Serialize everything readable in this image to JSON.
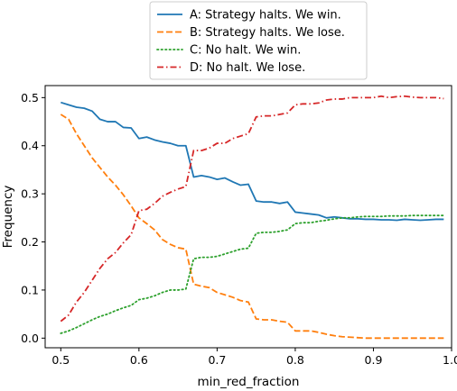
{
  "chart_data": {
    "type": "line",
    "xlabel": "min_red_fraction",
    "ylabel": "Frequency",
    "xlim": [
      0.48,
      1.0
    ],
    "ylim": [
      -0.02,
      0.525
    ],
    "xticks": [
      0.5,
      0.6,
      0.7,
      0.8,
      0.9,
      1.0
    ],
    "xtick_labels": [
      "0.5",
      "0.6",
      "0.7",
      "0.8",
      "0.9",
      "1.0"
    ],
    "yticks": [
      0.0,
      0.1,
      0.2,
      0.3,
      0.4,
      0.5
    ],
    "ytick_labels": [
      "0.0",
      "0.1",
      "0.2",
      "0.3",
      "0.4",
      "0.5"
    ],
    "grid": false,
    "legend_position": "top-center, outside plot",
    "x": [
      0.5,
      0.51,
      0.52,
      0.53,
      0.54,
      0.55,
      0.56,
      0.57,
      0.58,
      0.59,
      0.6,
      0.61,
      0.62,
      0.63,
      0.64,
      0.65,
      0.66,
      0.67,
      0.68,
      0.69,
      0.7,
      0.71,
      0.72,
      0.73,
      0.74,
      0.75,
      0.76,
      0.77,
      0.78,
      0.79,
      0.8,
      0.81,
      0.82,
      0.83,
      0.84,
      0.85,
      0.86,
      0.87,
      0.88,
      0.89,
      0.9,
      0.91,
      0.92,
      0.93,
      0.94,
      0.95,
      0.96,
      0.97,
      0.98,
      0.99
    ],
    "series": [
      {
        "name": "A: Strategy halts. We win.",
        "color": "#1f77b4",
        "dash": "solid",
        "values": [
          0.49,
          0.485,
          0.48,
          0.478,
          0.472,
          0.455,
          0.45,
          0.45,
          0.438,
          0.437,
          0.415,
          0.418,
          0.412,
          0.408,
          0.405,
          0.4,
          0.4,
          0.335,
          0.338,
          0.335,
          0.33,
          0.333,
          0.325,
          0.318,
          0.32,
          0.285,
          0.283,
          0.283,
          0.28,
          0.283,
          0.262,
          0.26,
          0.258,
          0.256,
          0.25,
          0.252,
          0.25,
          0.248,
          0.248,
          0.247,
          0.247,
          0.246,
          0.246,
          0.245,
          0.247,
          0.246,
          0.245,
          0.246,
          0.247,
          0.247
        ]
      },
      {
        "name": "B: Strategy halts. We lose.",
        "color": "#ff7f0e",
        "dash": "dashed",
        "values": [
          0.465,
          0.455,
          0.425,
          0.4,
          0.375,
          0.355,
          0.335,
          0.318,
          0.298,
          0.275,
          0.25,
          0.238,
          0.225,
          0.205,
          0.195,
          0.188,
          0.185,
          0.112,
          0.108,
          0.105,
          0.095,
          0.09,
          0.085,
          0.078,
          0.075,
          0.04,
          0.038,
          0.038,
          0.035,
          0.033,
          0.015,
          0.015,
          0.015,
          0.012,
          0.008,
          0.005,
          0.003,
          0.002,
          0.001,
          0.0,
          0.0,
          0.0,
          0.0,
          0.0,
          0.0,
          0.0,
          0.0,
          0.0,
          0.0,
          0.0
        ]
      },
      {
        "name": "C: No halt. We win.",
        "color": "#2ca02c",
        "dash": "dotted",
        "values": [
          0.01,
          0.015,
          0.022,
          0.03,
          0.038,
          0.045,
          0.05,
          0.057,
          0.063,
          0.068,
          0.08,
          0.083,
          0.088,
          0.095,
          0.1,
          0.1,
          0.102,
          0.165,
          0.168,
          0.168,
          0.17,
          0.175,
          0.18,
          0.185,
          0.187,
          0.218,
          0.22,
          0.22,
          0.222,
          0.225,
          0.238,
          0.24,
          0.24,
          0.243,
          0.245,
          0.248,
          0.25,
          0.25,
          0.252,
          0.253,
          0.253,
          0.253,
          0.254,
          0.254,
          0.254,
          0.255,
          0.255,
          0.255,
          0.255,
          0.255
        ]
      },
      {
        "name": "D: No halt. We lose.",
        "color": "#d62728",
        "dash": "dashdot",
        "values": [
          0.035,
          0.048,
          0.075,
          0.095,
          0.12,
          0.145,
          0.165,
          0.178,
          0.198,
          0.215,
          0.265,
          0.268,
          0.28,
          0.295,
          0.303,
          0.31,
          0.315,
          0.39,
          0.39,
          0.395,
          0.405,
          0.405,
          0.415,
          0.42,
          0.425,
          0.46,
          0.462,
          0.462,
          0.465,
          0.468,
          0.485,
          0.487,
          0.487,
          0.489,
          0.495,
          0.497,
          0.497,
          0.5,
          0.5,
          0.5,
          0.5,
          0.503,
          0.5,
          0.502,
          0.503,
          0.501,
          0.5,
          0.5,
          0.5,
          0.498
        ]
      }
    ]
  }
}
